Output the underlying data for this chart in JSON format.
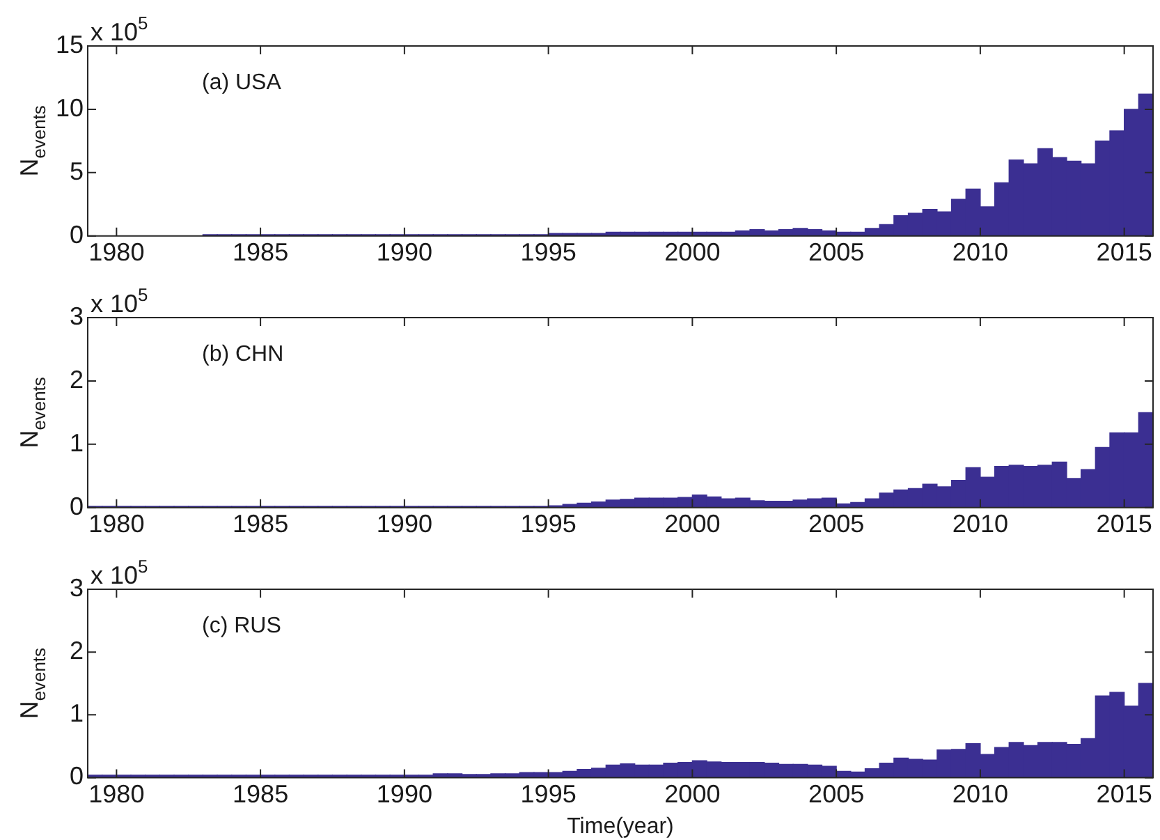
{
  "chart_data": [
    {
      "type": "histogram",
      "color": "#3b2f92",
      "ylabel": "N$_{events}$",
      "annotations": [
        "(a) USA",
        "x 10$^{5}$"
      ],
      "xlim": [
        1979,
        2016
      ],
      "xticks": [
        1980,
        1985,
        1990,
        1995,
        2000,
        2005,
        2010,
        2015
      ],
      "ylim": [
        0,
        15
      ],
      "yticks": [
        0,
        5,
        10,
        15
      ],
      "bins": [
        1979,
        1979.5,
        1980,
        1980.5,
        1981,
        1981.5,
        1982,
        1982.5,
        1983,
        1983.5,
        1984,
        1984.5,
        1985,
        1985.5,
        1986,
        1986.5,
        1987,
        1987.5,
        1988,
        1988.5,
        1989,
        1989.5,
        1990,
        1990.5,
        1991,
        1991.5,
        1992,
        1992.5,
        1993,
        1993.5,
        1994,
        1994.5,
        1995,
        1995.5,
        1996,
        1996.5,
        1997,
        1997.5,
        1998,
        1998.5,
        1999,
        1999.5,
        2000,
        2000.5,
        2001,
        2001.5,
        2002,
        2002.5,
        2003,
        2003.5,
        2004,
        2004.5,
        2005,
        2005.5,
        2006,
        2006.5,
        2007,
        2007.5,
        2008,
        2008.5,
        2009,
        2009.5,
        2010,
        2010.5,
        2011,
        2011.5,
        2012,
        2012.5,
        2013,
        2013.5,
        2014,
        2014.5,
        2015,
        2015.5,
        2016
      ],
      "values": [
        0,
        0,
        0,
        0,
        0,
        0,
        0,
        0,
        0.1,
        0.1,
        0.1,
        0.1,
        0.1,
        0.1,
        0.1,
        0.1,
        0.1,
        0.1,
        0.1,
        0.1,
        0.1,
        0.1,
        0.1,
        0.1,
        0.1,
        0.1,
        0.1,
        0.1,
        0.1,
        0.1,
        0.1,
        0.1,
        0.2,
        0.2,
        0.2,
        0.2,
        0.3,
        0.3,
        0.3,
        0.3,
        0.3,
        0.3,
        0.3,
        0.3,
        0.3,
        0.4,
        0.5,
        0.4,
        0.5,
        0.6,
        0.5,
        0.4,
        0.3,
        0.3,
        0.6,
        0.9,
        1.6,
        1.8,
        2.1,
        1.9,
        2.9,
        3.7,
        2.3,
        4.2,
        6.0,
        5.7,
        6.9,
        6.2,
        5.9,
        5.7,
        7.5,
        8.3,
        10.0,
        11.2
      ]
    },
    {
      "type": "histogram",
      "color": "#3b2f92",
      "ylabel": "N$_{events}$",
      "annotations": [
        "(b) CHN",
        "x 10$^{5}$"
      ],
      "xlim": [
        1979,
        2016
      ],
      "xticks": [
        1980,
        1985,
        1990,
        1995,
        2000,
        2005,
        2010,
        2015
      ],
      "ylim": [
        0,
        3
      ],
      "yticks": [
        0,
        1,
        2,
        3
      ],
      "bins": [
        1979,
        1979.5,
        1980,
        1980.5,
        1981,
        1981.5,
        1982,
        1982.5,
        1983,
        1983.5,
        1984,
        1984.5,
        1985,
        1985.5,
        1986,
        1986.5,
        1987,
        1987.5,
        1988,
        1988.5,
        1989,
        1989.5,
        1990,
        1990.5,
        1991,
        1991.5,
        1992,
        1992.5,
        1993,
        1993.5,
        1994,
        1994.5,
        1995,
        1995.5,
        1996,
        1996.5,
        1997,
        1997.5,
        1998,
        1998.5,
        1999,
        1999.5,
        2000,
        2000.5,
        2001,
        2001.5,
        2002,
        2002.5,
        2003,
        2003.5,
        2004,
        2004.5,
        2005,
        2005.5,
        2006,
        2006.5,
        2007,
        2007.5,
        2008,
        2008.5,
        2009,
        2009.5,
        2010,
        2010.5,
        2011,
        2011.5,
        2012,
        2012.5,
        2013,
        2013.5,
        2014,
        2014.5,
        2015,
        2015.5,
        2016
      ],
      "values": [
        0.02,
        0.02,
        0.02,
        0.02,
        0.02,
        0.02,
        0.02,
        0.02,
        0.02,
        0.02,
        0.02,
        0.02,
        0.02,
        0.02,
        0.02,
        0.02,
        0.02,
        0.02,
        0.02,
        0.02,
        0.02,
        0.02,
        0.02,
        0.02,
        0.02,
        0.02,
        0.02,
        0.02,
        0.02,
        0.02,
        0.02,
        0.02,
        0.03,
        0.05,
        0.07,
        0.09,
        0.12,
        0.13,
        0.15,
        0.15,
        0.15,
        0.16,
        0.2,
        0.17,
        0.14,
        0.15,
        0.11,
        0.1,
        0.1,
        0.12,
        0.14,
        0.15,
        0.06,
        0.08,
        0.14,
        0.23,
        0.28,
        0.3,
        0.37,
        0.33,
        0.43,
        0.63,
        0.48,
        0.65,
        0.67,
        0.65,
        0.67,
        0.72,
        0.46,
        0.6,
        0.95,
        1.18,
        1.18,
        1.5
      ]
    },
    {
      "type": "histogram",
      "color": "#3b2f92",
      "xlabel": "Time(year)",
      "ylabel": "N$_{events}$",
      "annotations": [
        "(c) RUS",
        "x 10$^{5}$"
      ],
      "xlim": [
        1979,
        2016
      ],
      "xticks": [
        1980,
        1985,
        1990,
        1995,
        2000,
        2005,
        2010,
        2015
      ],
      "ylim": [
        0,
        3
      ],
      "yticks": [
        0,
        1,
        2,
        3
      ],
      "bins": [
        1979,
        1979.5,
        1980,
        1980.5,
        1981,
        1981.5,
        1982,
        1982.5,
        1983,
        1983.5,
        1984,
        1984.5,
        1985,
        1985.5,
        1986,
        1986.5,
        1987,
        1987.5,
        1988,
        1988.5,
        1989,
        1989.5,
        1990,
        1990.5,
        1991,
        1991.5,
        1992,
        1992.5,
        1993,
        1993.5,
        1994,
        1994.5,
        1995,
        1995.5,
        1996,
        1996.5,
        1997,
        1997.5,
        1998,
        1998.5,
        1999,
        1999.5,
        2000,
        2000.5,
        2001,
        2001.5,
        2002,
        2002.5,
        2003,
        2003.5,
        2004,
        2004.5,
        2005,
        2005.5,
        2006,
        2006.5,
        2007,
        2007.5,
        2008,
        2008.5,
        2009,
        2009.5,
        2010,
        2010.5,
        2011,
        2011.5,
        2012,
        2012.5,
        2013,
        2013.5,
        2014,
        2014.5,
        2015,
        2015.5,
        2016
      ],
      "values": [
        0.04,
        0.04,
        0.04,
        0.04,
        0.04,
        0.04,
        0.04,
        0.04,
        0.04,
        0.04,
        0.04,
        0.04,
        0.04,
        0.04,
        0.04,
        0.04,
        0.04,
        0.04,
        0.04,
        0.04,
        0.04,
        0.04,
        0.04,
        0.04,
        0.06,
        0.06,
        0.05,
        0.05,
        0.06,
        0.06,
        0.08,
        0.08,
        0.08,
        0.1,
        0.13,
        0.15,
        0.2,
        0.22,
        0.2,
        0.2,
        0.23,
        0.24,
        0.27,
        0.25,
        0.24,
        0.24,
        0.24,
        0.23,
        0.21,
        0.21,
        0.2,
        0.18,
        0.1,
        0.09,
        0.14,
        0.23,
        0.31,
        0.29,
        0.28,
        0.44,
        0.45,
        0.54,
        0.37,
        0.48,
        0.56,
        0.51,
        0.56,
        0.56,
        0.53,
        0.62,
        1.3,
        1.36,
        1.14,
        1.5
      ]
    }
  ]
}
